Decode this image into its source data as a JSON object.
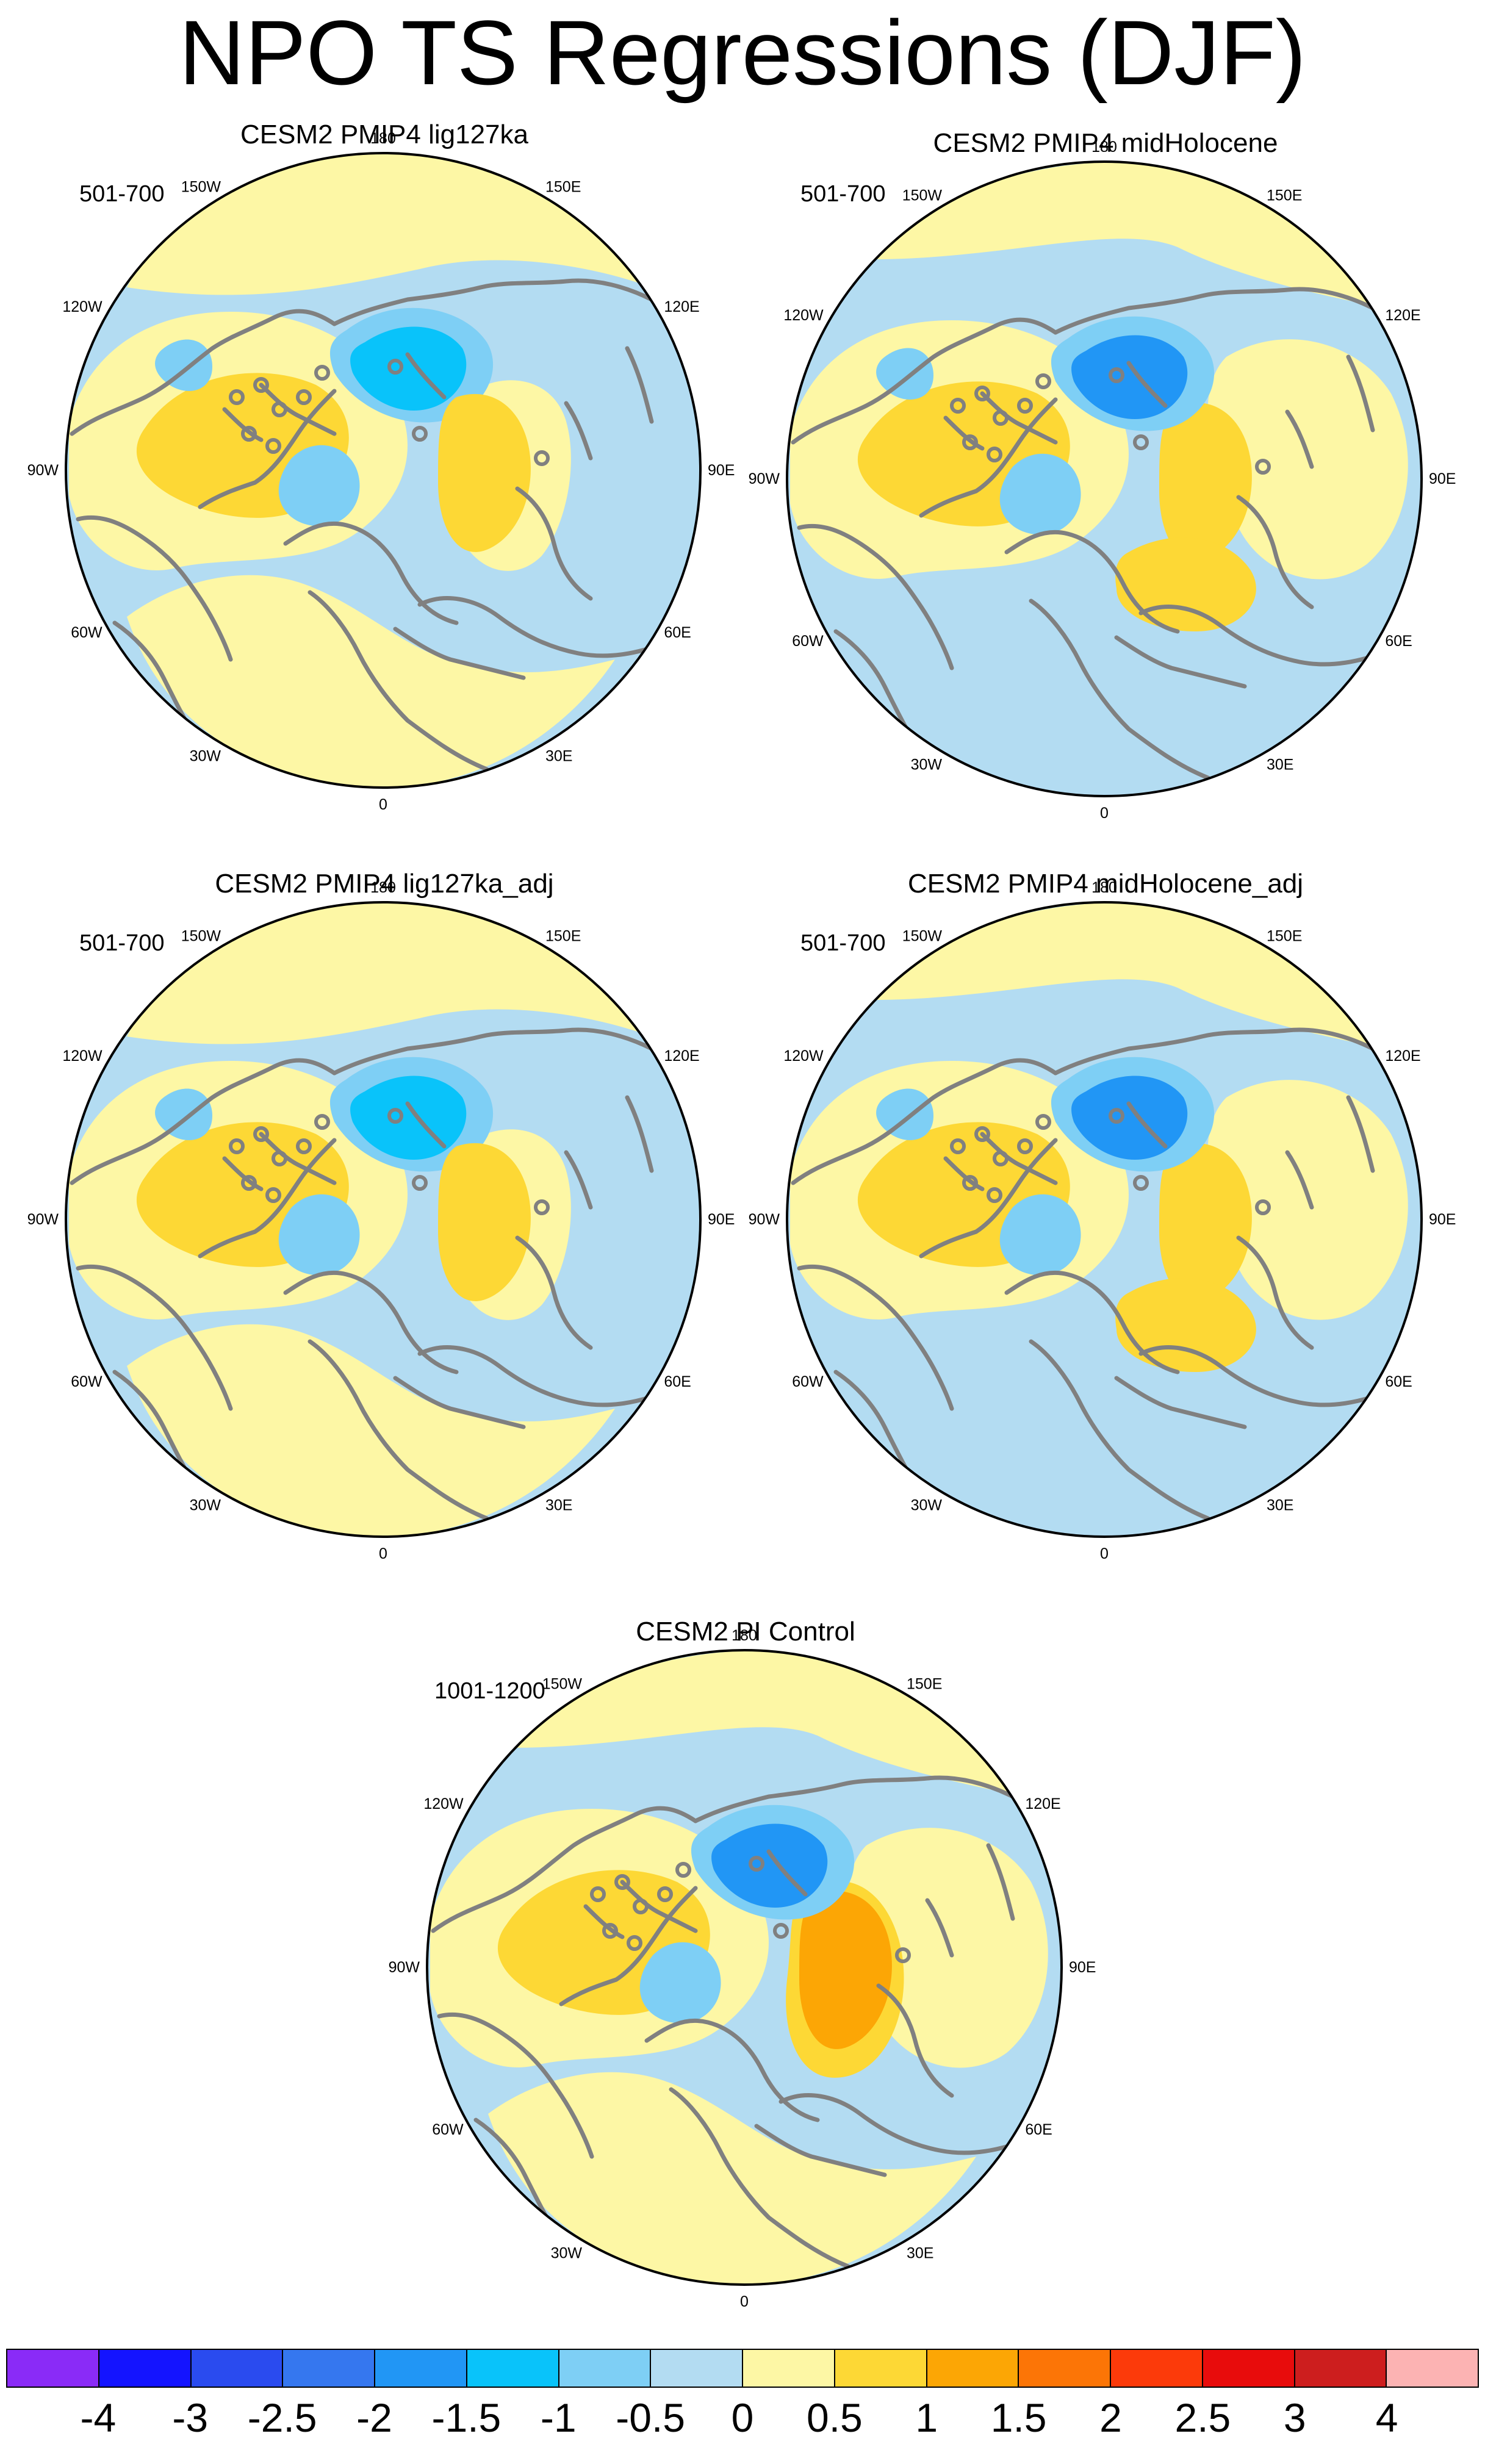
{
  "title": "NPO TS Regressions (DJF)",
  "colors": {
    "land_outline": "#808080",
    "border": "#000000",
    "background": "#ffffff"
  },
  "panels": [
    {
      "title": "CESM2 PMIP4 lig127ka",
      "years": "501-700",
      "base_color": "#b3dcf2"
    },
    {
      "title": "CESM2 PMIP4 midHolocene",
      "years": "501-700",
      "base_color": "#b3dcf2"
    },
    {
      "title": "CESM2 PMIP4 lig127ka_adj",
      "years": "501-700",
      "base_color": "#b3dcf2"
    },
    {
      "title": "CESM2 PMIP4 midHolocene_adj",
      "years": "501-700",
      "base_color": "#b3dcf2"
    },
    {
      "title": "CESM2 PI Control",
      "years": "1001-1200",
      "base_color": "#b3dcf2"
    }
  ],
  "lon_labels": {
    "top": "180",
    "upper_left": "150W",
    "upper_right": "150E",
    "mid_upper_left": "120W",
    "mid_upper_right": "120E",
    "left": "90W",
    "right": "90E",
    "mid_lower_left": "60W",
    "mid_lower_right": "60E",
    "lower_left": "30W",
    "lower_right": "30E",
    "bottom": "0"
  },
  "colorbar": {
    "colors": [
      "#8a2bf7",
      "#1414ff",
      "#2a4bef",
      "#3577ef",
      "#2196f5",
      "#09c3fa",
      "#7ecff5",
      "#b3dcf2",
      "#fdf7a5",
      "#fdd835",
      "#fca605",
      "#fc7506",
      "#fc3a0a",
      "#e80c0c",
      "#cd1e1e",
      "#fcb3b3"
    ],
    "labels": [
      "-4",
      "-3",
      "-2.5",
      "-2",
      "-1.5",
      "-1",
      "-0.5",
      "0",
      "0.5",
      "1",
      "1.5",
      "2",
      "2.5",
      "3",
      "4"
    ]
  }
}
